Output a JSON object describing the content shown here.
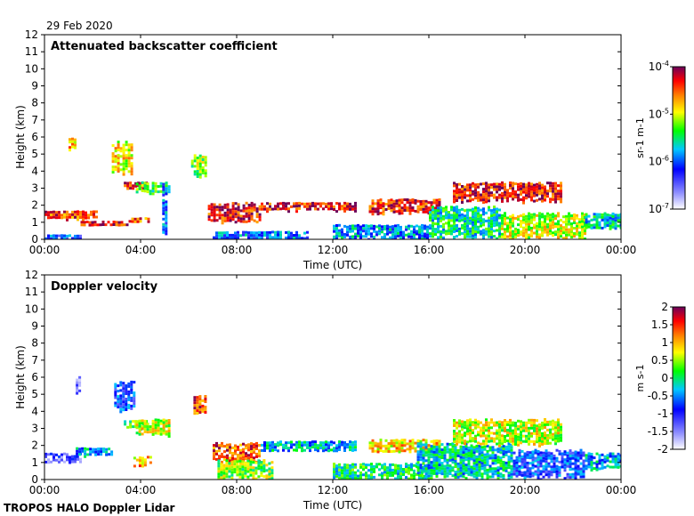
{
  "header": {
    "date": "29 Feb 2020"
  },
  "footer": {
    "instrument": "TROPOS HALO Doppler Lidar"
  },
  "chart_data": [
    {
      "type": "heatmap",
      "title": "Attenuated backscatter coefficient",
      "xlabel": "Time (UTC)",
      "ylabel": "Height (km)",
      "xticks": [
        "00:00",
        "04:00",
        "08:00",
        "12:00",
        "16:00",
        "20:00",
        "00:00"
      ],
      "xlim_hours": [
        0,
        24
      ],
      "yticks": [
        "0",
        "1",
        "2",
        "3",
        "4",
        "5",
        "6",
        "7",
        "8",
        "9",
        "10",
        "11",
        "12"
      ],
      "ylim": [
        0,
        12
      ],
      "colorbar": {
        "label": "sr-1 m-1",
        "scale": "log",
        "ticks": [
          "10-7",
          "10-6",
          "10-5",
          "10-4"
        ],
        "range": [
          1e-07,
          0.0001
        ]
      },
      "features": [
        {
          "t0": 0.0,
          "t1": 2.2,
          "h0": 1.2,
          "h1": 1.7,
          "c": 0.85
        },
        {
          "t0": 0.0,
          "t1": 1.5,
          "h0": 0.0,
          "h1": 0.3,
          "c": 0.3
        },
        {
          "t0": 1.0,
          "t1": 1.3,
          "h0": 5.2,
          "h1": 6.0,
          "c": 0.75
        },
        {
          "t0": 1.5,
          "t1": 3.5,
          "h0": 0.8,
          "h1": 1.1,
          "c": 0.9
        },
        {
          "t0": 2.8,
          "t1": 3.6,
          "h0": 3.8,
          "h1": 5.8,
          "c": 0.7
        },
        {
          "t0": 3.3,
          "t1": 4.2,
          "h0": 3.0,
          "h1": 3.4,
          "c": 0.85
        },
        {
          "t0": 3.8,
          "t1": 5.2,
          "h0": 2.7,
          "h1": 3.4,
          "c": 0.55
        },
        {
          "t0": 3.5,
          "t1": 4.3,
          "h0": 1.0,
          "h1": 1.3,
          "c": 0.85
        },
        {
          "t0": 4.9,
          "t1": 5.1,
          "h0": 0.0,
          "h1": 3.3,
          "c": 0.35
        },
        {
          "t0": 6.1,
          "t1": 6.7,
          "h0": 3.5,
          "h1": 5.0,
          "c": 0.6
        },
        {
          "t0": 6.8,
          "t1": 9.0,
          "h0": 1.0,
          "h1": 2.2,
          "c": 0.9
        },
        {
          "t0": 7.0,
          "t1": 11.0,
          "h0": 0.0,
          "h1": 0.5,
          "c": 0.35
        },
        {
          "t0": 9.0,
          "t1": 13.0,
          "h0": 1.7,
          "h1": 2.2,
          "c": 0.9
        },
        {
          "t0": 12.0,
          "t1": 16.0,
          "h0": 0.0,
          "h1": 0.9,
          "c": 0.38
        },
        {
          "t0": 13.5,
          "t1": 16.5,
          "h0": 1.5,
          "h1": 2.4,
          "c": 0.88
        },
        {
          "t0": 16.0,
          "t1": 19.0,
          "h0": 0.0,
          "h1": 2.0,
          "c": 0.48
        },
        {
          "t0": 17.0,
          "t1": 21.5,
          "h0": 2.2,
          "h1": 3.4,
          "c": 0.9
        },
        {
          "t0": 19.0,
          "t1": 22.5,
          "h0": 0.0,
          "h1": 1.6,
          "c": 0.65
        },
        {
          "t0": 22.5,
          "t1": 24.0,
          "h0": 0.6,
          "h1": 1.6,
          "c": 0.45
        }
      ]
    },
    {
      "type": "heatmap",
      "title": "Doppler velocity",
      "xlabel": "Time (UTC)",
      "ylabel": "Height (km)",
      "xticks": [
        "00:00",
        "04:00",
        "08:00",
        "12:00",
        "16:00",
        "20:00",
        "00:00"
      ],
      "xlim_hours": [
        0,
        24
      ],
      "yticks": [
        "0",
        "1",
        "2",
        "3",
        "4",
        "5",
        "6",
        "7",
        "8",
        "9",
        "10",
        "11",
        "12"
      ],
      "ylim": [
        0,
        12
      ],
      "colorbar": {
        "label": "m s-1",
        "scale": "linear",
        "ticks": [
          "2",
          "1.5",
          "1",
          "0.5",
          "0",
          "-0.5",
          "-1",
          "-1.5",
          "-2"
        ],
        "range": [
          -2,
          2
        ]
      },
      "features": [
        {
          "t0": 0.0,
          "t1": 1.5,
          "h0": 1.0,
          "h1": 1.6,
          "c": 0.2
        },
        {
          "t0": 1.3,
          "t1": 2.8,
          "h0": 1.4,
          "h1": 1.9,
          "c": 0.4
        },
        {
          "t0": 1.3,
          "t1": 1.5,
          "h0": 5.0,
          "h1": 6.2,
          "c": 0.1
        },
        {
          "t0": 2.9,
          "t1": 3.7,
          "h0": 4.0,
          "h1": 5.8,
          "c": 0.3
        },
        {
          "t0": 3.3,
          "t1": 4.2,
          "h0": 3.0,
          "h1": 3.5,
          "c": 0.55
        },
        {
          "t0": 3.8,
          "t1": 5.2,
          "h0": 2.6,
          "h1": 3.6,
          "c": 0.65
        },
        {
          "t0": 3.7,
          "t1": 4.4,
          "h0": 0.8,
          "h1": 1.4,
          "c": 0.75
        },
        {
          "t0": 6.2,
          "t1": 6.7,
          "h0": 3.8,
          "h1": 5.0,
          "c": 0.85
        },
        {
          "t0": 7.0,
          "t1": 9.0,
          "h0": 1.0,
          "h1": 2.2,
          "c": 0.85
        },
        {
          "t0": 7.2,
          "t1": 9.5,
          "h0": 0.0,
          "h1": 1.2,
          "c": 0.6
        },
        {
          "t0": 9.0,
          "t1": 13.0,
          "h0": 1.7,
          "h1": 2.3,
          "c": 0.42
        },
        {
          "t0": 12.0,
          "t1": 16.0,
          "h0": 0.0,
          "h1": 1.0,
          "c": 0.5
        },
        {
          "t0": 13.5,
          "t1": 16.5,
          "h0": 1.6,
          "h1": 2.4,
          "c": 0.72
        },
        {
          "t0": 15.5,
          "t1": 19.5,
          "h0": 0.0,
          "h1": 2.2,
          "c": 0.45
        },
        {
          "t0": 17.0,
          "t1": 21.5,
          "h0": 2.0,
          "h1": 3.6,
          "c": 0.65
        },
        {
          "t0": 19.5,
          "t1": 22.5,
          "h0": 0.0,
          "h1": 1.8,
          "c": 0.3
        },
        {
          "t0": 22.5,
          "t1": 24.0,
          "h0": 0.6,
          "h1": 1.6,
          "c": 0.4
        }
      ]
    }
  ]
}
